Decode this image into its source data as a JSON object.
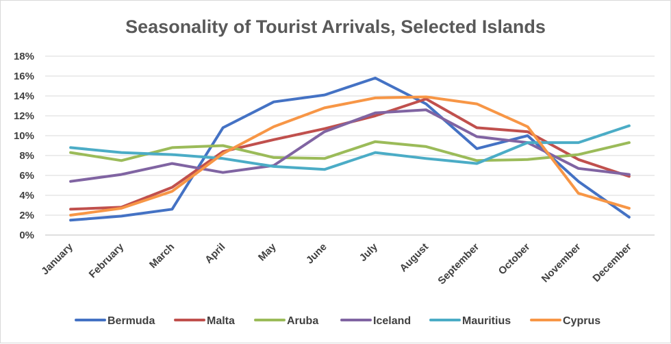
{
  "chart_data": {
    "type": "line",
    "title": "Seasonality of Tourist Arrivals, Selected Islands",
    "xlabel": "",
    "ylabel": "",
    "categories": [
      "January",
      "February",
      "March",
      "April",
      "May",
      "June",
      "July",
      "August",
      "September",
      "October",
      "November",
      "December"
    ],
    "ylim": [
      0,
      18
    ],
    "yticks": [
      "0%",
      "2%",
      "4%",
      "6%",
      "8%",
      "10%",
      "12%",
      "14%",
      "16%",
      "18%"
    ],
    "grid": true,
    "legend_position": "bottom",
    "series": [
      {
        "name": "Bermuda",
        "color": "#4472C4",
        "values": [
          1.5,
          1.9,
          2.6,
          10.8,
          13.4,
          14.1,
          15.8,
          13.2,
          8.7,
          10.0,
          5.4,
          1.8
        ]
      },
      {
        "name": "Malta",
        "color": "#C0504D",
        "values": [
          2.6,
          2.8,
          4.8,
          8.4,
          9.6,
          10.7,
          12.0,
          13.7,
          10.8,
          10.4,
          7.6,
          5.9
        ]
      },
      {
        "name": "Aruba",
        "color": "#9BBB59",
        "values": [
          8.3,
          7.5,
          8.8,
          9.0,
          7.8,
          7.7,
          9.4,
          8.9,
          7.5,
          7.6,
          8.1,
          9.3
        ]
      },
      {
        "name": "Iceland",
        "color": "#8064A2",
        "values": [
          5.4,
          6.1,
          7.2,
          6.3,
          7.0,
          10.4,
          12.3,
          12.6,
          9.9,
          9.3,
          6.7,
          6.1
        ]
      },
      {
        "name": "Mauritius",
        "color": "#4BACC6",
        "values": [
          8.8,
          8.3,
          8.1,
          7.7,
          6.9,
          6.6,
          8.3,
          7.7,
          7.2,
          9.3,
          9.3,
          11.0
        ]
      },
      {
        "name": "Cyprus",
        "color": "#F79646",
        "values": [
          2.0,
          2.7,
          4.4,
          8.2,
          10.9,
          12.8,
          13.8,
          13.9,
          13.2,
          10.9,
          4.2,
          2.7
        ]
      }
    ]
  }
}
